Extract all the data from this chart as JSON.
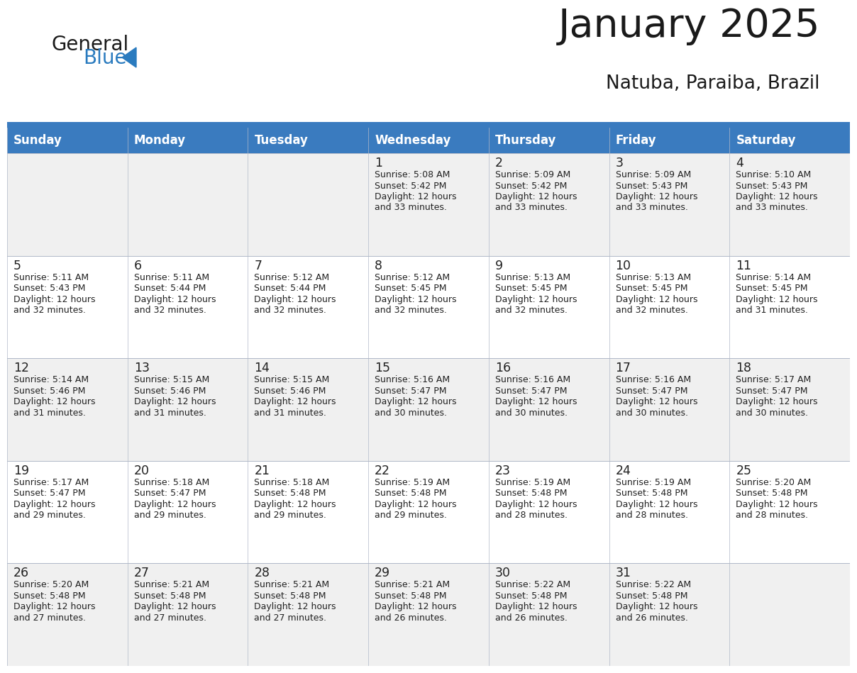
{
  "title": "January 2025",
  "subtitle": "Natuba, Paraiba, Brazil",
  "header_bg": "#3a7bbf",
  "header_text": "#ffffff",
  "day_names": [
    "Sunday",
    "Monday",
    "Tuesday",
    "Wednesday",
    "Thursday",
    "Friday",
    "Saturday"
  ],
  "row_bg_odd": "#f0f0f0",
  "row_bg_even": "#ffffff",
  "cell_border": "#b0b8c8",
  "text_color": "#222222",
  "title_color": "#1a1a1a",
  "logo_general_color": "#1a1a1a",
  "logo_blue_color": "#2a7bbf",
  "separator_color": "#3a7bbf",
  "weeks": [
    [
      null,
      null,
      null,
      {
        "day": 1,
        "sunrise": "5:08 AM",
        "sunset": "5:42 PM",
        "daylight": "12 hours and 33 minutes."
      },
      {
        "day": 2,
        "sunrise": "5:09 AM",
        "sunset": "5:42 PM",
        "daylight": "12 hours and 33 minutes."
      },
      {
        "day": 3,
        "sunrise": "5:09 AM",
        "sunset": "5:43 PM",
        "daylight": "12 hours and 33 minutes."
      },
      {
        "day": 4,
        "sunrise": "5:10 AM",
        "sunset": "5:43 PM",
        "daylight": "12 hours and 33 minutes."
      }
    ],
    [
      {
        "day": 5,
        "sunrise": "5:11 AM",
        "sunset": "5:43 PM",
        "daylight": "12 hours and 32 minutes."
      },
      {
        "day": 6,
        "sunrise": "5:11 AM",
        "sunset": "5:44 PM",
        "daylight": "12 hours and 32 minutes."
      },
      {
        "day": 7,
        "sunrise": "5:12 AM",
        "sunset": "5:44 PM",
        "daylight": "12 hours and 32 minutes."
      },
      {
        "day": 8,
        "sunrise": "5:12 AM",
        "sunset": "5:45 PM",
        "daylight": "12 hours and 32 minutes."
      },
      {
        "day": 9,
        "sunrise": "5:13 AM",
        "sunset": "5:45 PM",
        "daylight": "12 hours and 32 minutes."
      },
      {
        "day": 10,
        "sunrise": "5:13 AM",
        "sunset": "5:45 PM",
        "daylight": "12 hours and 32 minutes."
      },
      {
        "day": 11,
        "sunrise": "5:14 AM",
        "sunset": "5:45 PM",
        "daylight": "12 hours and 31 minutes."
      }
    ],
    [
      {
        "day": 12,
        "sunrise": "5:14 AM",
        "sunset": "5:46 PM",
        "daylight": "12 hours and 31 minutes."
      },
      {
        "day": 13,
        "sunrise": "5:15 AM",
        "sunset": "5:46 PM",
        "daylight": "12 hours and 31 minutes."
      },
      {
        "day": 14,
        "sunrise": "5:15 AM",
        "sunset": "5:46 PM",
        "daylight": "12 hours and 31 minutes."
      },
      {
        "day": 15,
        "sunrise": "5:16 AM",
        "sunset": "5:47 PM",
        "daylight": "12 hours and 30 minutes."
      },
      {
        "day": 16,
        "sunrise": "5:16 AM",
        "sunset": "5:47 PM",
        "daylight": "12 hours and 30 minutes."
      },
      {
        "day": 17,
        "sunrise": "5:16 AM",
        "sunset": "5:47 PM",
        "daylight": "12 hours and 30 minutes."
      },
      {
        "day": 18,
        "sunrise": "5:17 AM",
        "sunset": "5:47 PM",
        "daylight": "12 hours and 30 minutes."
      }
    ],
    [
      {
        "day": 19,
        "sunrise": "5:17 AM",
        "sunset": "5:47 PM",
        "daylight": "12 hours and 29 minutes."
      },
      {
        "day": 20,
        "sunrise": "5:18 AM",
        "sunset": "5:47 PM",
        "daylight": "12 hours and 29 minutes."
      },
      {
        "day": 21,
        "sunrise": "5:18 AM",
        "sunset": "5:48 PM",
        "daylight": "12 hours and 29 minutes."
      },
      {
        "day": 22,
        "sunrise": "5:19 AM",
        "sunset": "5:48 PM",
        "daylight": "12 hours and 29 minutes."
      },
      {
        "day": 23,
        "sunrise": "5:19 AM",
        "sunset": "5:48 PM",
        "daylight": "12 hours and 28 minutes."
      },
      {
        "day": 24,
        "sunrise": "5:19 AM",
        "sunset": "5:48 PM",
        "daylight": "12 hours and 28 minutes."
      },
      {
        "day": 25,
        "sunrise": "5:20 AM",
        "sunset": "5:48 PM",
        "daylight": "12 hours and 28 minutes."
      }
    ],
    [
      {
        "day": 26,
        "sunrise": "5:20 AM",
        "sunset": "5:48 PM",
        "daylight": "12 hours and 27 minutes."
      },
      {
        "day": 27,
        "sunrise": "5:21 AM",
        "sunset": "5:48 PM",
        "daylight": "12 hours and 27 minutes."
      },
      {
        "day": 28,
        "sunrise": "5:21 AM",
        "sunset": "5:48 PM",
        "daylight": "12 hours and 27 minutes."
      },
      {
        "day": 29,
        "sunrise": "5:21 AM",
        "sunset": "5:48 PM",
        "daylight": "12 hours and 26 minutes."
      },
      {
        "day": 30,
        "sunrise": "5:22 AM",
        "sunset": "5:48 PM",
        "daylight": "12 hours and 26 minutes."
      },
      {
        "day": 31,
        "sunrise": "5:22 AM",
        "sunset": "5:48 PM",
        "daylight": "12 hours and 26 minutes."
      },
      null
    ]
  ]
}
